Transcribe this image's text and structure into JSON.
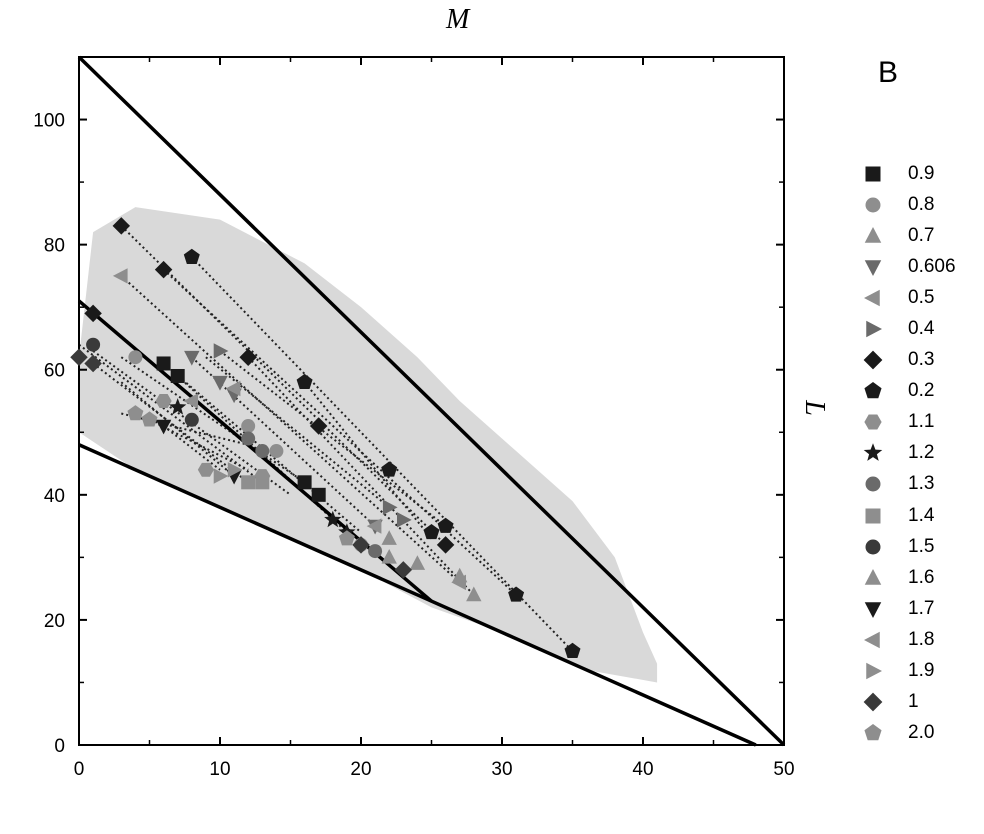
{
  "panel_letter": "B",
  "top_axis_label": "M",
  "right_axis_label": "L",
  "colors": {
    "dark": "#1a1a1a",
    "mid": "#6a6a6a",
    "light": "#8e8e8e",
    "shade": "#d9d9d9"
  },
  "chart_data": {
    "type": "scatter",
    "title": "",
    "xlabel": "",
    "ylabel": "",
    "xlim": [
      0,
      50
    ],
    "ylim": [
      0,
      110
    ],
    "x_ticks": [
      0,
      10,
      20,
      30,
      40,
      50
    ],
    "y_ticks": [
      0,
      20,
      40,
      60,
      80,
      100
    ],
    "grid": false,
    "legend_position": "right",
    "boundary_lines": [
      {
        "name": "upper",
        "points": [
          [
            0,
            110
          ],
          [
            50,
            0
          ]
        ]
      },
      {
        "name": "lower",
        "points": [
          [
            0,
            48
          ],
          [
            48,
            0
          ]
        ]
      },
      {
        "name": "middle",
        "points": [
          [
            0,
            71
          ],
          [
            25,
            23
          ]
        ]
      }
    ],
    "shaded_region": [
      [
        0,
        62
      ],
      [
        1,
        82
      ],
      [
        4,
        86
      ],
      [
        10,
        84
      ],
      [
        16,
        77
      ],
      [
        20,
        70
      ],
      [
        24,
        62
      ],
      [
        27,
        55
      ],
      [
        31,
        47
      ],
      [
        35,
        39
      ],
      [
        38,
        30
      ],
      [
        40,
        18
      ],
      [
        41,
        13
      ],
      [
        41,
        10
      ],
      [
        36,
        12
      ],
      [
        30,
        18
      ],
      [
        25,
        22
      ],
      [
        20,
        28
      ],
      [
        14,
        34
      ],
      [
        8,
        40
      ],
      [
        4,
        44
      ],
      [
        0,
        50
      ]
    ],
    "tie_lines": [
      [
        [
          3,
          83
        ],
        [
          26,
          32
        ]
      ],
      [
        [
          6,
          76
        ],
        [
          31,
          24
        ]
      ],
      [
        [
          8,
          78
        ],
        [
          35,
          15
        ]
      ],
      [
        [
          3,
          75
        ],
        [
          27,
          26
        ]
      ],
      [
        [
          12,
          62
        ],
        [
          28,
          24
        ]
      ],
      [
        [
          16,
          58
        ],
        [
          25,
          33
        ]
      ],
      [
        [
          10,
          63
        ],
        [
          26,
          35
        ]
      ],
      [
        [
          9,
          62
        ],
        [
          22,
          38
        ]
      ],
      [
        [
          8,
          62
        ],
        [
          21,
          35
        ]
      ],
      [
        [
          6,
          61
        ],
        [
          20,
          34
        ]
      ],
      [
        [
          7,
          59
        ],
        [
          19,
          34
        ]
      ],
      [
        [
          3,
          62
        ],
        [
          16,
          42
        ]
      ],
      [
        [
          1,
          63
        ],
        [
          15,
          40
        ]
      ],
      [
        [
          0,
          64
        ],
        [
          13,
          42
        ]
      ],
      [
        [
          1,
          61
        ],
        [
          12,
          42
        ]
      ],
      [
        [
          3,
          58
        ],
        [
          11,
          43
        ]
      ],
      [
        [
          3,
          53
        ],
        [
          12,
          48
        ]
      ],
      [
        [
          5,
          52
        ],
        [
          12,
          44
        ]
      ],
      [
        [
          6,
          51
        ],
        [
          10,
          44
        ]
      ]
    ],
    "series": [
      {
        "name": "0.9",
        "marker": "square",
        "color": "#1a1a1a",
        "points": [
          [
            6,
            61
          ],
          [
            7,
            59
          ],
          [
            16,
            42
          ],
          [
            17,
            40
          ]
        ]
      },
      {
        "name": "0.8",
        "marker": "circle",
        "color": "#8e8e8e",
        "points": [
          [
            4,
            62
          ],
          [
            12,
            51
          ],
          [
            14,
            47
          ],
          [
            20,
            32
          ]
        ]
      },
      {
        "name": "0.7",
        "marker": "triangle-up",
        "color": "#8e8e8e",
        "points": [
          [
            22,
            33
          ],
          [
            27,
            27
          ]
        ]
      },
      {
        "name": "0.606",
        "marker": "triangle-down",
        "color": "#6a6a6a",
        "points": [
          [
            8,
            62
          ],
          [
            10,
            58
          ],
          [
            11,
            56
          ],
          [
            21,
            35
          ]
        ]
      },
      {
        "name": "0.5",
        "marker": "triangle-left",
        "color": "#8e8e8e",
        "points": [
          [
            3,
            75
          ],
          [
            11,
            57
          ],
          [
            27,
            26
          ]
        ]
      },
      {
        "name": "0.4",
        "marker": "triangle-right",
        "color": "#6a6a6a",
        "points": [
          [
            10,
            63
          ],
          [
            22,
            38
          ],
          [
            23,
            36
          ]
        ]
      },
      {
        "name": "0.3",
        "marker": "diamond",
        "color": "#1a1a1a",
        "points": [
          [
            3,
            83
          ],
          [
            6,
            76
          ],
          [
            12,
            62
          ],
          [
            17,
            51
          ],
          [
            26,
            32
          ],
          [
            1,
            69
          ]
        ]
      },
      {
        "name": "0.2",
        "marker": "pentagon",
        "color": "#1a1a1a",
        "points": [
          [
            8,
            78
          ],
          [
            16,
            58
          ],
          [
            22,
            44
          ],
          [
            31,
            24
          ],
          [
            35,
            15
          ],
          [
            25,
            34
          ],
          [
            26,
            35
          ]
        ]
      },
      {
        "name": "1.1",
        "marker": "hexagon",
        "color": "#8e8e8e",
        "points": [
          [
            6,
            55
          ],
          [
            9,
            44
          ],
          [
            13,
            43
          ]
        ]
      },
      {
        "name": "1.2",
        "marker": "star",
        "color": "#1a1a1a",
        "points": [
          [
            7,
            54
          ],
          [
            18,
            36
          ],
          [
            19,
            34
          ]
        ]
      },
      {
        "name": "1.3",
        "marker": "circle",
        "color": "#6a6a6a",
        "points": [
          [
            12,
            49
          ],
          [
            13,
            47
          ],
          [
            21,
            31
          ]
        ]
      },
      {
        "name": "1.4",
        "marker": "square",
        "color": "#8e8e8e",
        "points": [
          [
            12,
            42
          ],
          [
            13,
            42
          ]
        ]
      },
      {
        "name": "1.5",
        "marker": "circle",
        "color": "#3a3a3a",
        "points": [
          [
            1,
            64
          ],
          [
            8,
            52
          ]
        ]
      },
      {
        "name": "1.6",
        "marker": "triangle-up",
        "color": "#8e8e8e",
        "points": [
          [
            22,
            30
          ],
          [
            24,
            29
          ],
          [
            28,
            24
          ]
        ]
      },
      {
        "name": "1.7",
        "marker": "triangle-down",
        "color": "#1a1a1a",
        "points": [
          [
            11,
            43
          ],
          [
            6,
            51
          ]
        ]
      },
      {
        "name": "1.8",
        "marker": "triangle-left",
        "color": "#8e8e8e",
        "points": [
          [
            8,
            55
          ],
          [
            21,
            35
          ]
        ]
      },
      {
        "name": "1.9",
        "marker": "triangle-right",
        "color": "#8e8e8e",
        "points": [
          [
            10,
            43
          ],
          [
            11,
            44
          ]
        ]
      },
      {
        "name": "1",
        "marker": "diamond",
        "color": "#3a3a3a",
        "points": [
          [
            0,
            62
          ],
          [
            1,
            61
          ],
          [
            20,
            32
          ],
          [
            23,
            28
          ]
        ]
      },
      {
        "name": "2.0",
        "marker": "pentagon",
        "color": "#8e8e8e",
        "points": [
          [
            4,
            53
          ],
          [
            5,
            52
          ],
          [
            19,
            33
          ]
        ]
      }
    ]
  }
}
